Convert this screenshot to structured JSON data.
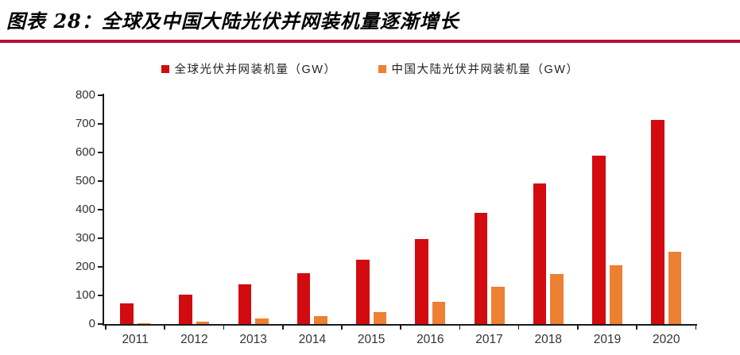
{
  "header": {
    "title": "图表 28：全球及中国大陆光伏并网装机量逐渐增长",
    "rule_color": "#B21038"
  },
  "legend": [
    {
      "label": "全球光伏并网装机量（GW）",
      "color": "#D20B10"
    },
    {
      "label": "中国大陆光伏并网装机量（GW）",
      "color": "#ED8033"
    }
  ],
  "chart_data": {
    "type": "bar",
    "title": "全球及中国大陆光伏并网装机量逐渐增长",
    "categories": [
      "2011",
      "2012",
      "2013",
      "2014",
      "2015",
      "2016",
      "2017",
      "2018",
      "2019",
      "2020"
    ],
    "series": [
      {
        "name": "全球光伏并网装机量（GW）",
        "color": "#D20B10",
        "values": [
          73,
          104,
          140,
          177,
          224,
          297,
          390,
          492,
          589,
          714
        ]
      },
      {
        "name": "中国大陆光伏并网装机量（GW）",
        "color": "#ED8033",
        "values": [
          3,
          9,
          19,
          28,
          43,
          77,
          130,
          175,
          205,
          254
        ]
      }
    ],
    "xlabel": "",
    "ylabel": "",
    "unit": "GW",
    "ylim": [
      0,
      800
    ],
    "yticks": [
      0,
      100,
      200,
      300,
      400,
      500,
      600,
      700,
      800
    ],
    "grid": false,
    "legend_position": "top-center"
  }
}
